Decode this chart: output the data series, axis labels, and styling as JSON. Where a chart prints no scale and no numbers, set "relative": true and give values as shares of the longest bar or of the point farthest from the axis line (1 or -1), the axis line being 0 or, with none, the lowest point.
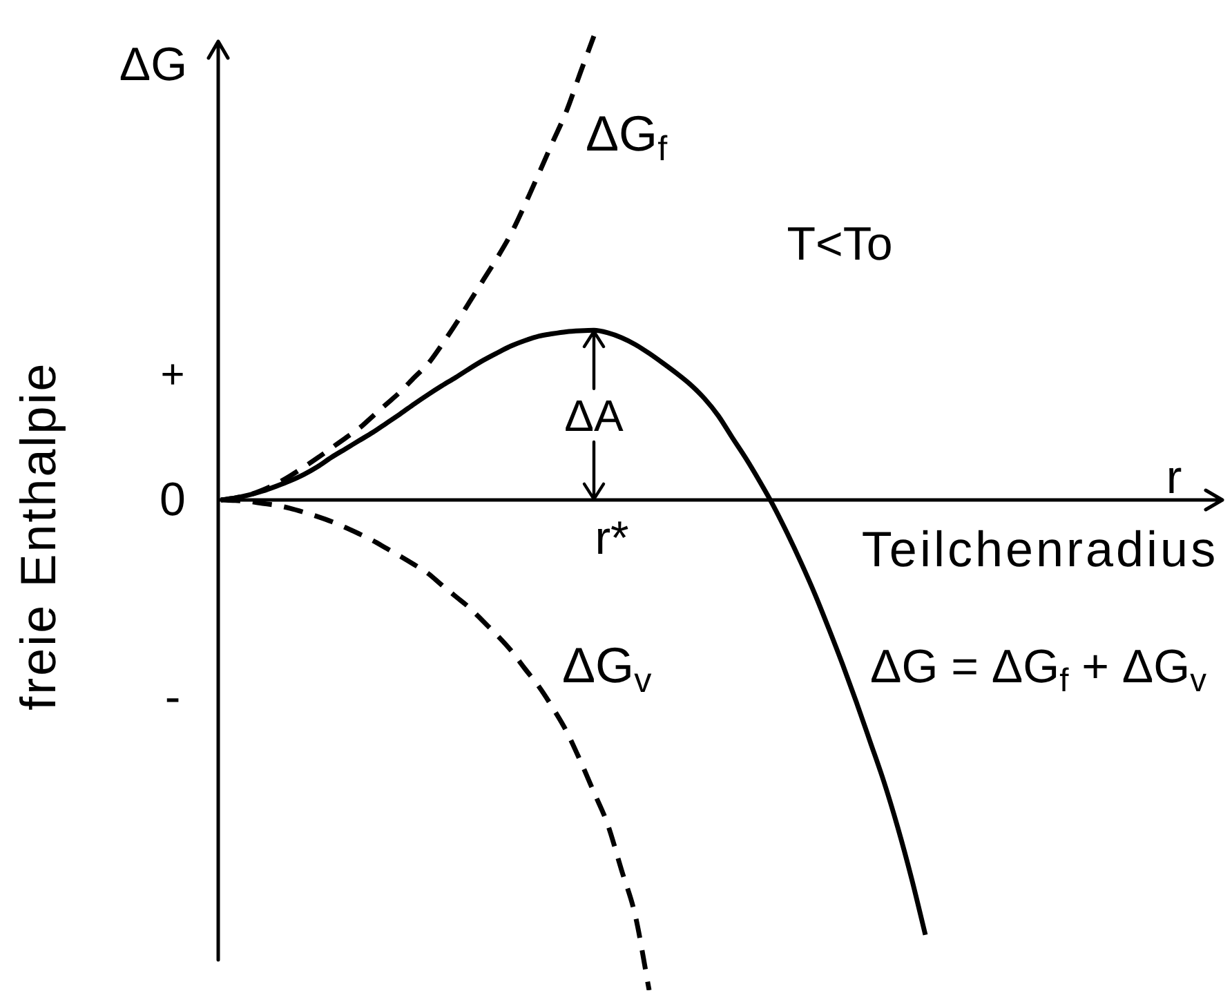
{
  "chart_data": {
    "type": "line",
    "relative": true,
    "xlabel": "Teilchenradius",
    "ylabel": "freie Enthalpie",
    "annotations": [
      "ΔG",
      "+",
      "0",
      "-",
      "r",
      "r*",
      "ΔA",
      "T<To"
    ],
    "categories": [
      null,
      null,
      null,
      null,
      null,
      null,
      null,
      null,
      null,
      null,
      null,
      null,
      null,
      null,
      null,
      null,
      null,
      null,
      null,
      null,
      null,
      null,
      null,
      null,
      null,
      null,
      null,
      null,
      null,
      null,
      null,
      null,
      null,
      null,
      null,
      null,
      null,
      null,
      null,
      null,
      null,
      null,
      null,
      null,
      null,
      null,
      null,
      null,
      null,
      null,
      null,
      null,
      null,
      null,
      null,
      null,
      null,
      null,
      null,
      null,
      null,
      null,
      null,
      null,
      null,
      null,
      null,
      null,
      null,
      null,
      null,
      null,
      null
    ],
    "series": [
      {
        "name": "ΔG$_{f}$",
        "color": "#000000",
        "line_style": "dashed",
        "values": [
          0,
          0.004,
          0.01,
          0.02,
          0.033,
          0.049,
          0.067,
          0.086,
          0.106,
          0.126,
          0.146,
          0.171,
          0.196,
          0.221,
          0.25,
          0.278,
          0.317,
          0.359,
          0.404,
          0.449,
          0.494,
          0.543,
          0.602,
          0.665,
          0.729,
          0.792,
          0.87,
          0.946,
          null,
          null,
          null,
          null,
          null,
          null,
          null,
          null,
          null,
          null,
          null,
          null,
          null,
          null,
          null,
          null,
          null,
          null,
          null,
          null,
          null,
          null,
          null,
          null,
          null,
          null,
          null,
          null,
          null,
          null,
          null,
          null,
          null,
          null,
          null,
          null,
          null,
          null,
          null,
          null,
          null,
          null,
          null,
          null,
          null
        ]
      },
      {
        "name": "ΔG$_{v}$",
        "color": "#000000",
        "line_style": "dashed",
        "values": [
          0,
          -0.001,
          -0.003,
          -0.007,
          -0.011,
          -0.017,
          -0.025,
          -0.034,
          -0.044,
          -0.056,
          -0.069,
          -0.083,
          -0.099,
          -0.115,
          -0.132,
          -0.15,
          -0.174,
          -0.197,
          -0.22,
          -0.248,
          -0.276,
          -0.307,
          -0.344,
          -0.38,
          -0.423,
          -0.471,
          -0.531,
          -0.596,
          -0.662,
          -0.755,
          -0.848,
          -1,
          null,
          null,
          null,
          null,
          null,
          null,
          null,
          null,
          null,
          null,
          null,
          null,
          null,
          null,
          null,
          null,
          null,
          null,
          null,
          null,
          null,
          null,
          null,
          null,
          null,
          null,
          null,
          null,
          null,
          null,
          null,
          null,
          null,
          null,
          null,
          null,
          null,
          null,
          null,
          null,
          null
        ]
      },
      {
        "name": "ΔG = ΔG$_{f}$ + ΔG$_{v}$",
        "color": "#000000",
        "line_style": "solid",
        "values": [
          0,
          0.004,
          0.01,
          0.018,
          0.028,
          0.039,
          0.052,
          0.068,
          0.087,
          0.104,
          0.121,
          0.138,
          0.157,
          0.176,
          0.196,
          0.215,
          0.233,
          0.25,
          0.268,
          0.285,
          0.3,
          0.314,
          0.325,
          0.334,
          0.339,
          0.343,
          0.345,
          0.346,
          0.341,
          0.331,
          0.317,
          0.299,
          0.279,
          0.258,
          0.235,
          0.207,
          0.172,
          0.128,
          0.085,
          0.038,
          -0.012,
          -0.068,
          -0.128,
          -0.192,
          -0.262,
          -0.335,
          -0.412,
          -0.493,
          -0.575,
          -0.668,
          -0.772,
          -0.887,
          null,
          null,
          null,
          null,
          null,
          null,
          null,
          null,
          null,
          null,
          null,
          null,
          null,
          null,
          null,
          null,
          null,
          null,
          null,
          null,
          null
        ]
      }
    ]
  }
}
